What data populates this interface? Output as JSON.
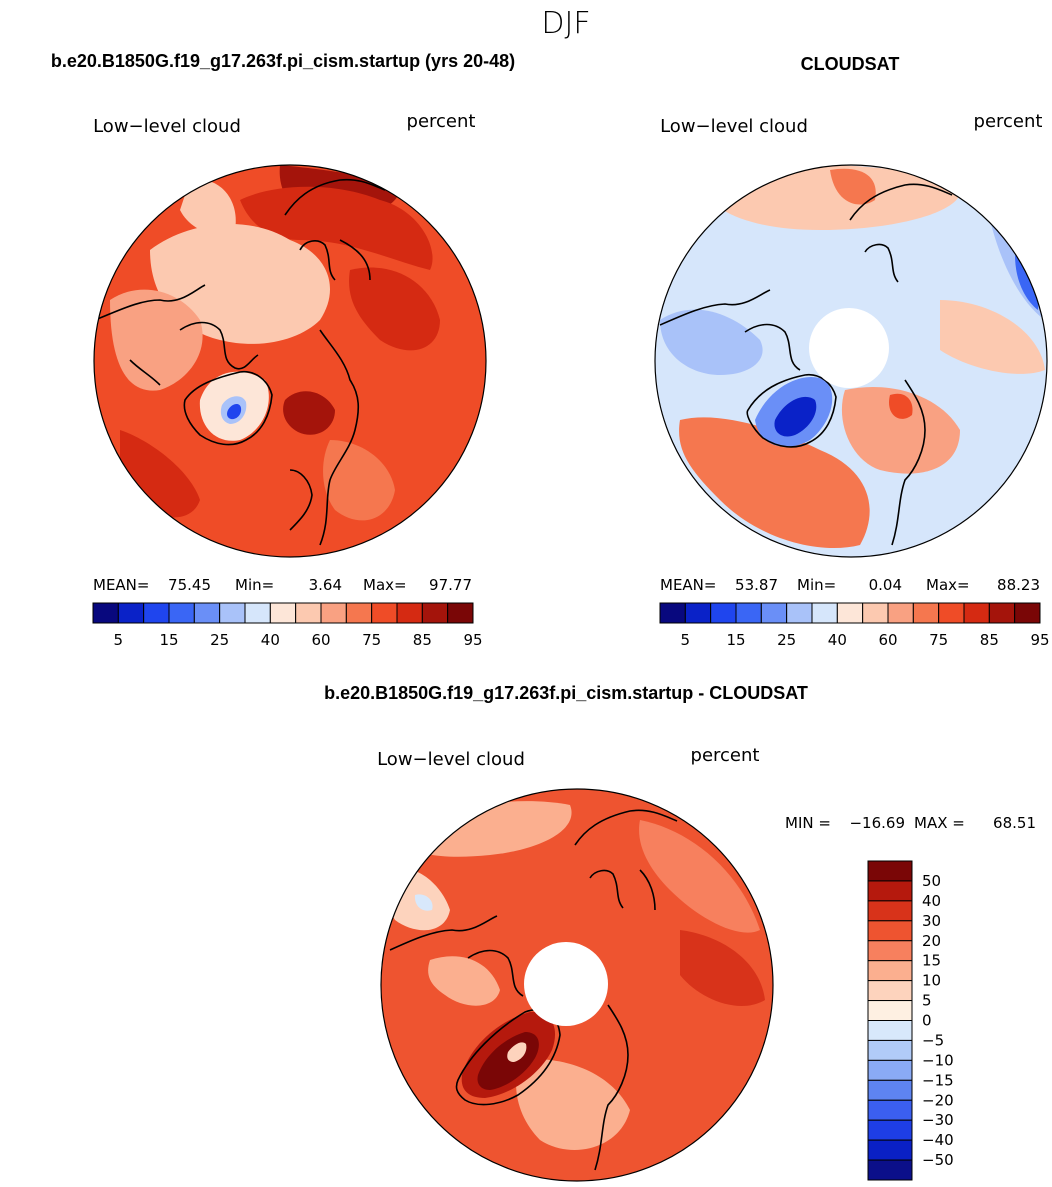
{
  "figure": {
    "season_title": "DJF"
  },
  "colors": {
    "abs_palette": [
      "#08087e",
      "#0a22c8",
      "#1f45ee",
      "#3a66f5",
      "#6a8ff7",
      "#a9c2f9",
      "#d6e6fb",
      "#fde6d8",
      "#fcc9b0",
      "#f9a182",
      "#f5774f",
      "#ef4c27",
      "#d52a12",
      "#a4140b",
      "#7a0606"
    ],
    "diff_palette": [
      "#7a0606",
      "#b5190d",
      "#d8331a",
      "#ee5430",
      "#f7805e",
      "#fbaf8f",
      "#fdd3bd",
      "#fef0e2",
      "#d8e8fb",
      "#b1cbf8",
      "#8aaaf5",
      "#5e84f1",
      "#3b5ff0",
      "#1e3ee6",
      "#0a20c5",
      "#0b0f8a"
    ]
  },
  "chart_data": [
    {
      "type": "polar_contour_map",
      "title": "b.e20.B1850G.f19_g17.263f.pi_cism.startup (yrs 20-48)",
      "left_label": "Low−level cloud",
      "right_label": "percent",
      "stats": {
        "mean_label": "MEAN=",
        "mean": "75.45",
        "min_label": "Min=",
        "min": "3.64",
        "max_label": "Max=",
        "max": "97.77"
      },
      "colorbar": {
        "orientation": "horizontal",
        "levels": [
          5,
          10,
          15,
          20,
          25,
          30,
          40,
          50,
          60,
          70,
          75,
          80,
          85,
          90,
          95
        ],
        "tick_labels": [
          "5",
          "15",
          "25",
          "40",
          "60",
          "75",
          "85",
          "95"
        ]
      },
      "regions": [
        {
          "name": "background",
          "level_index": 11
        },
        {
          "name": "north-pacific-dark",
          "level_index": 13
        },
        {
          "name": "arctic-ocean-pale",
          "level_index": 8
        },
        {
          "name": "greenland-core",
          "level_index": 3
        },
        {
          "name": "north-atlantic-dark",
          "level_index": 13
        },
        {
          "name": "canada-band",
          "level_index": 9
        }
      ]
    },
    {
      "type": "polar_contour_map",
      "title": "CLOUDSAT",
      "left_label": "Low−level cloud",
      "right_label": "percent",
      "stats": {
        "mean_label": "MEAN=",
        "mean": "53.87",
        "min_label": "Min=",
        "min": "0.04",
        "max_label": "Max=",
        "max": "88.23"
      },
      "colorbar": {
        "orientation": "horizontal",
        "levels": [
          5,
          10,
          15,
          20,
          25,
          30,
          40,
          50,
          60,
          70,
          75,
          80,
          85,
          90,
          95
        ],
        "tick_labels": [
          "5",
          "15",
          "25",
          "40",
          "60",
          "75",
          "85",
          "95"
        ]
      },
      "regions": [
        {
          "name": "background",
          "level_index": 6
        },
        {
          "name": "atlantic-band",
          "level_index": 10
        },
        {
          "name": "greenland-core",
          "level_index": 1
        },
        {
          "name": "pacific-band",
          "level_index": 8
        },
        {
          "name": "polar-gap",
          "level_index": -1
        }
      ]
    },
    {
      "type": "polar_contour_map",
      "title": "b.e20.B1850G.f19_g17.263f.pi_cism.startup - CLOUDSAT",
      "left_label": "Low−level cloud",
      "right_label": "percent",
      "stats": {
        "min_label": "MIN =",
        "min": "−16.69",
        "max_label": "MAX =",
        "max": "68.51"
      },
      "colorbar": {
        "orientation": "vertical",
        "levels": [
          50,
          40,
          30,
          20,
          15,
          10,
          5,
          0,
          -5,
          -10,
          -15,
          -20,
          -30,
          -40,
          -50
        ],
        "tick_labels": [
          "50",
          "40",
          "30",
          "20",
          "15",
          "10",
          "5",
          "0",
          "−5",
          "−10",
          "−15",
          "−20",
          "−30",
          "−40",
          "−50"
        ]
      },
      "regions": [
        {
          "name": "background",
          "level_index": 3
        },
        {
          "name": "greenland-core",
          "level_index": 0
        },
        {
          "name": "canada-band",
          "level_index": 5
        },
        {
          "name": "polar-gap",
          "level_index": -1
        }
      ]
    }
  ]
}
